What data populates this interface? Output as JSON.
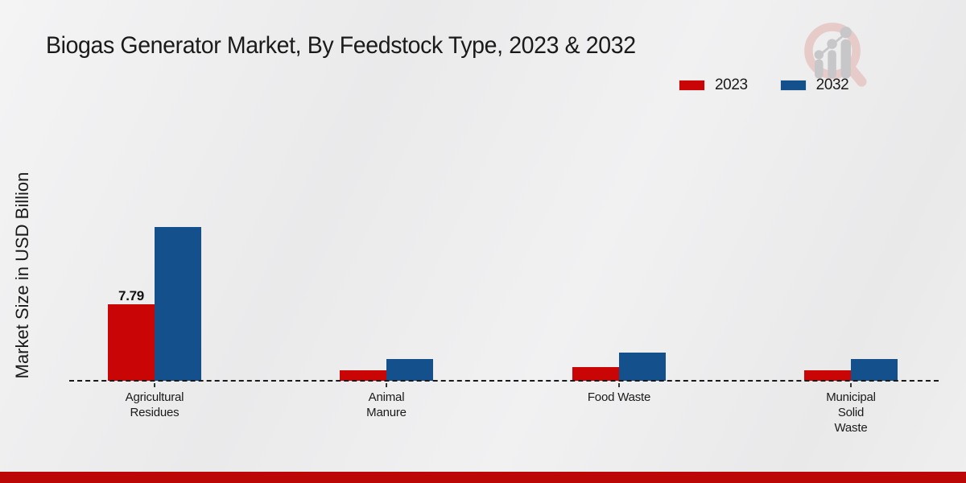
{
  "title": "Biogas Generator Market, By Feedstock Type, 2023 & 2032",
  "y_axis_label": "Market Size in USD Billion",
  "legend": {
    "items": [
      {
        "label": "2023",
        "color": "#c90605"
      },
      {
        "label": "2032",
        "color": "#14508c"
      }
    ]
  },
  "watermark_icon": "magnifier-bar-chart-logo",
  "colors": {
    "series_2023_red": "#c90605",
    "series_2032_blue": "#14508c",
    "footer_bar_red": "#bb0705",
    "text": "#1a1a1a",
    "background": "#ededee",
    "logo_ring_pink": "#e6cbc9",
    "logo_bars_grey": "#c7c7ca"
  },
  "chart_data": {
    "type": "bar",
    "title": "Biogas Generator Market, By Feedstock Type, 2023 & 2032",
    "xlabel": "",
    "ylabel": "Market Size in USD Billion",
    "categories": [
      "Agricultural Residues",
      "Animal Manure",
      "Food Waste",
      "Municipal Solid Waste"
    ],
    "category_label_lines": [
      [
        "Agricultural",
        "Residues"
      ],
      [
        "Animal",
        "Manure"
      ],
      [
        "Food Waste"
      ],
      [
        "Municipal",
        "Solid",
        "Waste"
      ]
    ],
    "series": [
      {
        "name": "2023",
        "color": "#c90605",
        "values": [
          7.79,
          1.1,
          1.4,
          1.05
        ]
      },
      {
        "name": "2032",
        "color": "#14508c",
        "values": [
          15.65,
          2.25,
          2.9,
          2.2
        ]
      }
    ],
    "value_labels": [
      {
        "series_index": 0,
        "category_index": 0,
        "text": "7.79"
      }
    ],
    "ylim": [
      0,
      16.5
    ],
    "grid": false,
    "legend_position": "top-right",
    "baseline_style": "dashed"
  }
}
